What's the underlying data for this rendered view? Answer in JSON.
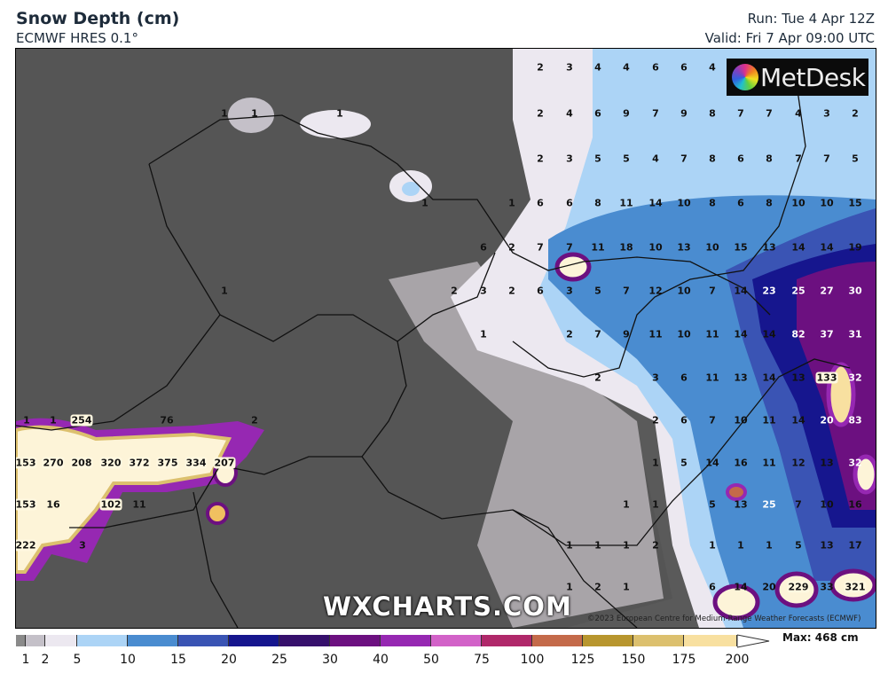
{
  "header": {
    "title": "Snow Depth (cm)",
    "model": "ECMWF HRES 0.1°",
    "run": "Run: Tue 4 Apr 12Z",
    "valid": "Valid: Fri 7 Apr 09:00 UTC"
  },
  "branding": {
    "logo": "MetDesk",
    "watermark": "WXCHARTS.COM",
    "copyright": "©2023 European Centre for Medium-Range Weather Forecasts (ECMWF)"
  },
  "map": {
    "variable": "snow depth",
    "units": "cm",
    "point_values": [
      "2",
      "3",
      "4",
      "4",
      "6",
      "6",
      "4",
      "2",
      "4",
      "6",
      "9",
      "7",
      "9",
      "8",
      "7",
      "7",
      "4",
      "3",
      "2",
      "2",
      "3",
      "5",
      "5",
      "4",
      "7",
      "8",
      "6",
      "8",
      "7",
      "7",
      "5",
      "1",
      "6",
      "6",
      "8",
      "11",
      "14",
      "10",
      "8",
      "6",
      "8",
      "10",
      "10",
      "15",
      "6",
      "2",
      "7",
      "7",
      "11",
      "18",
      "10",
      "13",
      "10",
      "15",
      "13",
      "14",
      "14",
      "19",
      "2",
      "3",
      "2",
      "6",
      "3",
      "5",
      "7",
      "12",
      "10",
      "7",
      "14",
      "23",
      "25",
      "27",
      "30",
      "1",
      "2",
      "7",
      "9",
      "11",
      "10",
      "11",
      "14",
      "14",
      "82",
      "37",
      "31",
      "2",
      "3",
      "6",
      "11",
      "13",
      "14",
      "13",
      "133",
      "32",
      "2",
      "6",
      "7",
      "10",
      "11",
      "14",
      "20",
      "83",
      "1",
      "5",
      "14",
      "16",
      "11",
      "12",
      "13",
      "32",
      "1",
      "1",
      "5",
      "13",
      "25",
      "7",
      "10",
      "16",
      "1",
      "1",
      "1",
      "2",
      "1",
      "1",
      "1",
      "5",
      "13",
      "17",
      "1",
      "2",
      "1",
      "6",
      "14",
      "20",
      "229",
      "33",
      "321",
      "1",
      "1",
      "1",
      "1",
      "1",
      "1",
      "1",
      "254",
      "76",
      "2",
      "153",
      "270",
      "208",
      "320",
      "372",
      "375",
      "334",
      "207",
      "153",
      "16",
      "102",
      "11",
      "222",
      "3"
    ]
  },
  "legend": {
    "ticks": [
      "1",
      "2",
      "5",
      "10",
      "15",
      "20",
      "25",
      "30",
      "40",
      "50",
      "75",
      "100",
      "125",
      "150",
      "175",
      "200"
    ],
    "colors": [
      "#8a8a8a",
      "#c4c0c8",
      "#ece8f0",
      "#acd4f6",
      "#4a8cd0",
      "#3a54b4",
      "#16168e",
      "#36106c",
      "#6c1080",
      "#9628b2",
      "#d262c8",
      "#b0286a",
      "#c46a4a",
      "#b8962e",
      "#dcc06e",
      "#f8e0a0"
    ],
    "max_label": "Max: 468 cm"
  }
}
